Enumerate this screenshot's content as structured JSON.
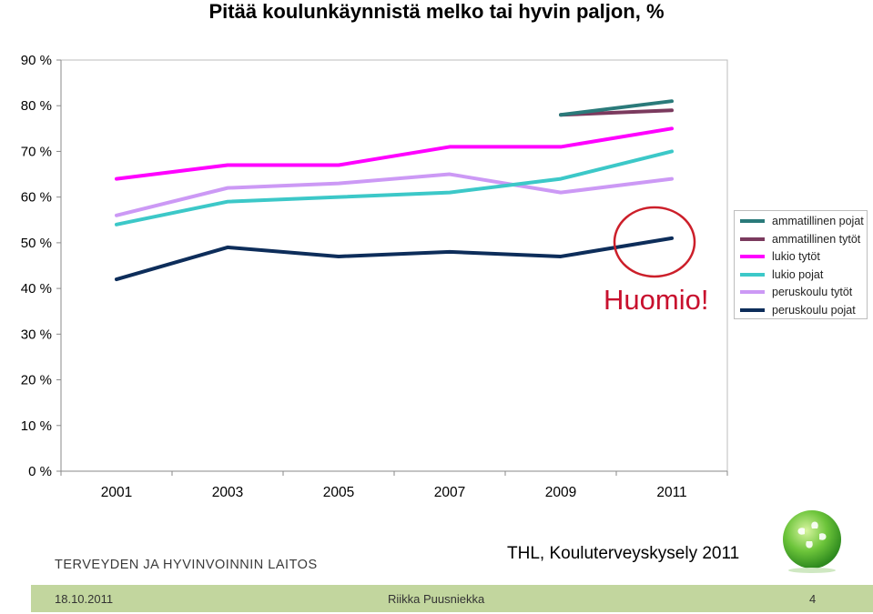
{
  "chart_data": {
    "type": "line",
    "title": "Pitää koulunkäynnistä melko tai hyvin paljon, %",
    "x": [
      "2001",
      "2003",
      "2005",
      "2007",
      "2009",
      "2011"
    ],
    "ylim": [
      0,
      90
    ],
    "yticks": [
      0,
      10,
      20,
      30,
      40,
      50,
      60,
      70,
      80,
      90
    ],
    "ytick_labels": [
      "0 %",
      "10 %",
      "20 %",
      "30 %",
      "40 %",
      "50 %",
      "60 %",
      "70 %",
      "80 %",
      "90 %"
    ],
    "grid": false,
    "legend_position": "right",
    "series": [
      {
        "name": "ammatillinen pojat",
        "color": "#2a7a7a",
        "values": [
          null,
          null,
          null,
          null,
          78,
          81
        ]
      },
      {
        "name": "ammatillinen tytöt",
        "color": "#7b3a5e",
        "values": [
          null,
          null,
          null,
          null,
          78,
          79
        ]
      },
      {
        "name": "lukio tytöt",
        "color": "#ff00ff",
        "values": [
          64,
          67,
          67,
          71,
          71,
          75
        ]
      },
      {
        "name": "lukio pojat",
        "color": "#3cc8c8",
        "values": [
          54,
          59,
          60,
          61,
          64,
          70
        ]
      },
      {
        "name": "peruskoulu tytöt",
        "color": "#cc99f5",
        "values": [
          56,
          62,
          63,
          65,
          61,
          64
        ]
      },
      {
        "name": "peruskoulu pojat",
        "color": "#0d2d5a",
        "values": [
          42,
          49,
          47,
          48,
          47,
          51
        ]
      }
    ],
    "annotation": {
      "text": "Huomio!",
      "color": "#cc1f2a"
    }
  },
  "footer": {
    "organization": "TERVEYDEN JA HYVINVOINNIN LAITOS",
    "source": "THL, Kouluterveyskysely 2011",
    "date": "18.10.2011",
    "author": "Riikka Puusniekka",
    "page_number": "4"
  }
}
